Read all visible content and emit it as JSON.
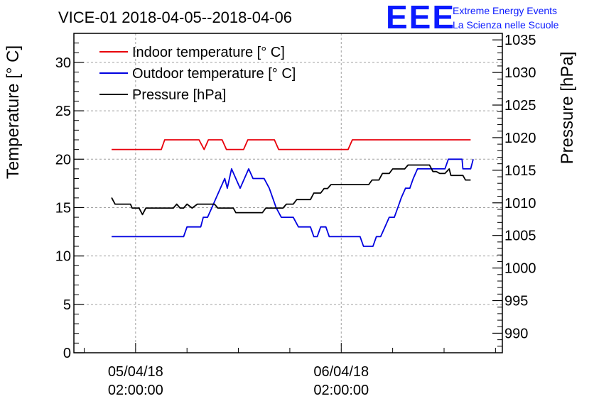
{
  "title": "VICE-01 2018-04-05--2018-04-06",
  "logo": {
    "mark": "EEE",
    "line1": "Extreme Energy Events",
    "line2": "La Scienza nelle Scuole"
  },
  "chart_data": {
    "type": "line",
    "ylabel_left": "Temperature [° C]",
    "ylabel_right": "Pressure [hPa]",
    "y_left_range": [
      0,
      33
    ],
    "y_left_ticks": [
      0,
      5,
      10,
      15,
      20,
      25,
      30
    ],
    "y_right_range": [
      987,
      1036
    ],
    "y_right_ticks": [
      990,
      995,
      1000,
      1005,
      1010,
      1015,
      1020,
      1025,
      1030,
      1035
    ],
    "x_range_hours": [
      0,
      50
    ],
    "x_ticks": [
      {
        "hour": 7.2,
        "label_date": "05/04/18",
        "label_time": "02:00:00"
      },
      {
        "hour": 31.2,
        "label_date": "06/04/18",
        "label_time": "02:00:00"
      }
    ],
    "grid": true,
    "legend_placement": "top-left",
    "series": [
      {
        "name": "Indoor temperature [° C]",
        "axis": "left",
        "color": "#e8000b",
        "points": [
          [
            4.4,
            21
          ],
          [
            10.2,
            21
          ],
          [
            10.6,
            22
          ],
          [
            14.6,
            22
          ],
          [
            15.2,
            21
          ],
          [
            15.7,
            22
          ],
          [
            17.3,
            22
          ],
          [
            17.8,
            21
          ],
          [
            19.8,
            21
          ],
          [
            20.3,
            22
          ],
          [
            23.4,
            22
          ],
          [
            23.9,
            21
          ],
          [
            32,
            21
          ],
          [
            32.5,
            22
          ],
          [
            46.3,
            22
          ]
        ]
      },
      {
        "name": "Outdoor temperature [° C]",
        "axis": "left",
        "color": "#0000e0",
        "points": [
          [
            4.4,
            12
          ],
          [
            12.8,
            12
          ],
          [
            13.2,
            13
          ],
          [
            14.8,
            13
          ],
          [
            15.1,
            14
          ],
          [
            15.6,
            14
          ],
          [
            16.1,
            15
          ],
          [
            16.6,
            16
          ],
          [
            17.1,
            17
          ],
          [
            17.6,
            18
          ],
          [
            17.9,
            17
          ],
          [
            18.4,
            19
          ],
          [
            18.9,
            18
          ],
          [
            19.4,
            17
          ],
          [
            19.9,
            18
          ],
          [
            20.4,
            19
          ],
          [
            20.9,
            18
          ],
          [
            22.2,
            18
          ],
          [
            22.8,
            17
          ],
          [
            23.2,
            16
          ],
          [
            23.6,
            15
          ],
          [
            24.2,
            14
          ],
          [
            25.6,
            14
          ],
          [
            26.2,
            13
          ],
          [
            27.6,
            13
          ],
          [
            28,
            12
          ],
          [
            28.4,
            12
          ],
          [
            28.8,
            13
          ],
          [
            29.4,
            13
          ],
          [
            29.8,
            12
          ],
          [
            33.4,
            12
          ],
          [
            33.8,
            11
          ],
          [
            34.9,
            11
          ],
          [
            35.3,
            12
          ],
          [
            35.8,
            12
          ],
          [
            36.3,
            13
          ],
          [
            36.8,
            14
          ],
          [
            37.4,
            14
          ],
          [
            37.8,
            15
          ],
          [
            38.2,
            16
          ],
          [
            38.7,
            17
          ],
          [
            39.2,
            17
          ],
          [
            39.6,
            18
          ],
          [
            40.1,
            19
          ],
          [
            43.3,
            19
          ],
          [
            43.7,
            20
          ],
          [
            43.9,
            20
          ],
          [
            45.3,
            20
          ],
          [
            45.4,
            19
          ],
          [
            46.3,
            19
          ],
          [
            46.6,
            20
          ]
        ]
      },
      {
        "name": "Pressure [hPa]",
        "axis": "right",
        "color": "#000000",
        "points": [
          [
            4.4,
            1010.8
          ],
          [
            4.8,
            1009.8
          ],
          [
            6.6,
            1009.8
          ],
          [
            6.8,
            1009.2
          ],
          [
            7.6,
            1009.2
          ],
          [
            8,
            1008.2
          ],
          [
            8.4,
            1009.2
          ],
          [
            11.6,
            1009.2
          ],
          [
            12,
            1009.8
          ],
          [
            12.4,
            1009.2
          ],
          [
            12.8,
            1009.2
          ],
          [
            13.2,
            1009.8
          ],
          [
            13.8,
            1009.2
          ],
          [
            14.4,
            1009.8
          ],
          [
            16.4,
            1009.8
          ],
          [
            16.8,
            1009.2
          ],
          [
            18.6,
            1009.2
          ],
          [
            18.9,
            1008.5
          ],
          [
            22,
            1008.5
          ],
          [
            22.4,
            1009.2
          ],
          [
            24.4,
            1009.2
          ],
          [
            24.8,
            1009.8
          ],
          [
            25.6,
            1009.8
          ],
          [
            26,
            1010.5
          ],
          [
            27.6,
            1010.5
          ],
          [
            28,
            1011.5
          ],
          [
            28.8,
            1011.5
          ],
          [
            29.2,
            1012.2
          ],
          [
            29.6,
            1012.2
          ],
          [
            30,
            1012.8
          ],
          [
            34.4,
            1012.8
          ],
          [
            34.8,
            1013.5
          ],
          [
            35.6,
            1013.5
          ],
          [
            36,
            1014.5
          ],
          [
            36.8,
            1014.5
          ],
          [
            37.2,
            1015.2
          ],
          [
            38.6,
            1015.2
          ],
          [
            39,
            1015.8
          ],
          [
            41.5,
            1015.8
          ],
          [
            41.9,
            1014.8
          ],
          [
            42.3,
            1014.8
          ],
          [
            42.7,
            1014.5
          ],
          [
            43.3,
            1014.5
          ],
          [
            43.8,
            1015.2
          ],
          [
            44,
            1014.2
          ],
          [
            45.4,
            1014.2
          ],
          [
            45.7,
            1013.5
          ],
          [
            46.3,
            1013.5
          ]
        ]
      }
    ]
  }
}
